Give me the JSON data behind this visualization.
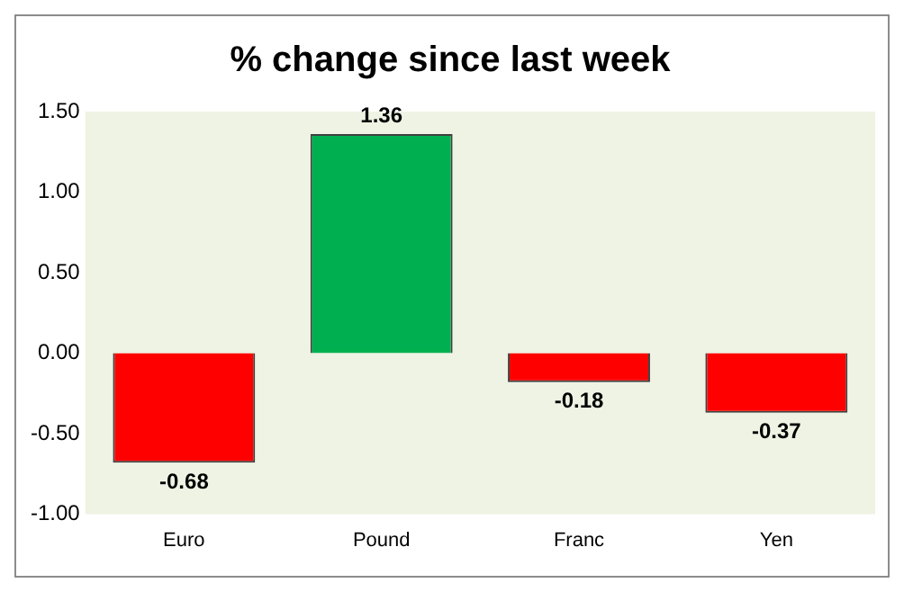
{
  "chart_data": {
    "type": "bar",
    "title": "% change since last week",
    "categories": [
      "Euro",
      "Pound",
      "Franc",
      "Yen"
    ],
    "values": [
      -0.68,
      1.36,
      -0.18,
      -0.37
    ],
    "colors": [
      "#ff0000",
      "#00b050",
      "#ff0000",
      "#ff0000"
    ],
    "ylim": [
      -1,
      1.5
    ],
    "yticks": [
      {
        "value": -1,
        "label": "-1.00"
      },
      {
        "value": -0.5,
        "label": "-0.50"
      },
      {
        "value": 0,
        "label": "0.00"
      },
      {
        "value": 0.5,
        "label": "0.50"
      },
      {
        "value": 1,
        "label": "1.00"
      },
      {
        "value": 1.5,
        "label": "1.50"
      }
    ],
    "grid": false,
    "legend": false,
    "data_labels": true
  }
}
